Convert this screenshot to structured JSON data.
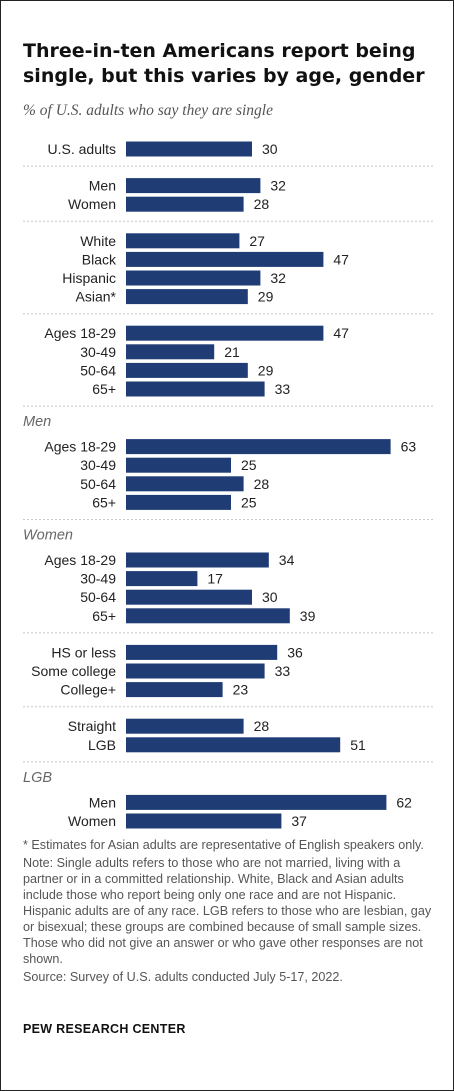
{
  "header": {
    "title": "Three-in-ten Americans report being single, but this varies by age, gender",
    "subtitle": "% of U.S. adults who say they are single"
  },
  "notes": {
    "asterisk": "* Estimates for Asian adults are representative of English speakers only.",
    "note": "Note: Single adults refers to those who are not married, living with a partner or in a committed relationship. White, Black and Asian adults include those who report being only one race and are not Hispanic. Hispanic adults are of any race. LGB refers to those who are lesbian, gay or bisexual; these groups are combined because of small sample sizes. Those who did not give an answer or who gave other responses are not shown.",
    "source": "Source: Survey of U.S. adults conducted July 5-17, 2022."
  },
  "brand": "PEW RESEARCH CENTER",
  "colors": {
    "bar": "#1f3c74",
    "divider": "#c8c8c8",
    "text": "#222222",
    "group_label": "#666666"
  },
  "chart_data": {
    "type": "bar",
    "orientation": "horizontal",
    "title": "Three-in-ten Americans report being single, but this varies by age, gender",
    "subtitle": "% of U.S. adults who say they are single",
    "xlim": [
      0,
      70
    ],
    "grid": false,
    "groups": [
      {
        "label": "",
        "items": [
          {
            "category": "U.S. adults",
            "value": 30
          }
        ]
      },
      {
        "label": "",
        "items": [
          {
            "category": "Men",
            "value": 32
          },
          {
            "category": "Women",
            "value": 28
          }
        ]
      },
      {
        "label": "",
        "items": [
          {
            "category": "White",
            "value": 27
          },
          {
            "category": "Black",
            "value": 47
          },
          {
            "category": "Hispanic",
            "value": 32
          },
          {
            "category": "Asian*",
            "value": 29
          }
        ]
      },
      {
        "label": "",
        "items": [
          {
            "category": "Ages 18-29",
            "value": 47
          },
          {
            "category": "30-49",
            "value": 21
          },
          {
            "category": "50-64",
            "value": 29
          },
          {
            "category": "65+",
            "value": 33
          }
        ]
      },
      {
        "label": "Men",
        "items": [
          {
            "category": "Ages 18-29",
            "value": 63
          },
          {
            "category": "30-49",
            "value": 25
          },
          {
            "category": "50-64",
            "value": 28
          },
          {
            "category": "65+",
            "value": 25
          }
        ]
      },
      {
        "label": "Women",
        "items": [
          {
            "category": "Ages 18-29",
            "value": 34
          },
          {
            "category": "30-49",
            "value": 17
          },
          {
            "category": "50-64",
            "value": 30
          },
          {
            "category": "65+",
            "value": 39
          }
        ]
      },
      {
        "label": "",
        "items": [
          {
            "category": "HS or less",
            "value": 36
          },
          {
            "category": "Some college",
            "value": 33
          },
          {
            "category": "College+",
            "value": 23
          }
        ]
      },
      {
        "label": "",
        "items": [
          {
            "category": "Straight",
            "value": 28
          },
          {
            "category": "LGB",
            "value": 51
          }
        ]
      },
      {
        "label": "LGB",
        "items": [
          {
            "category": "Men",
            "value": 62
          },
          {
            "category": "Women",
            "value": 37
          }
        ]
      }
    ]
  }
}
